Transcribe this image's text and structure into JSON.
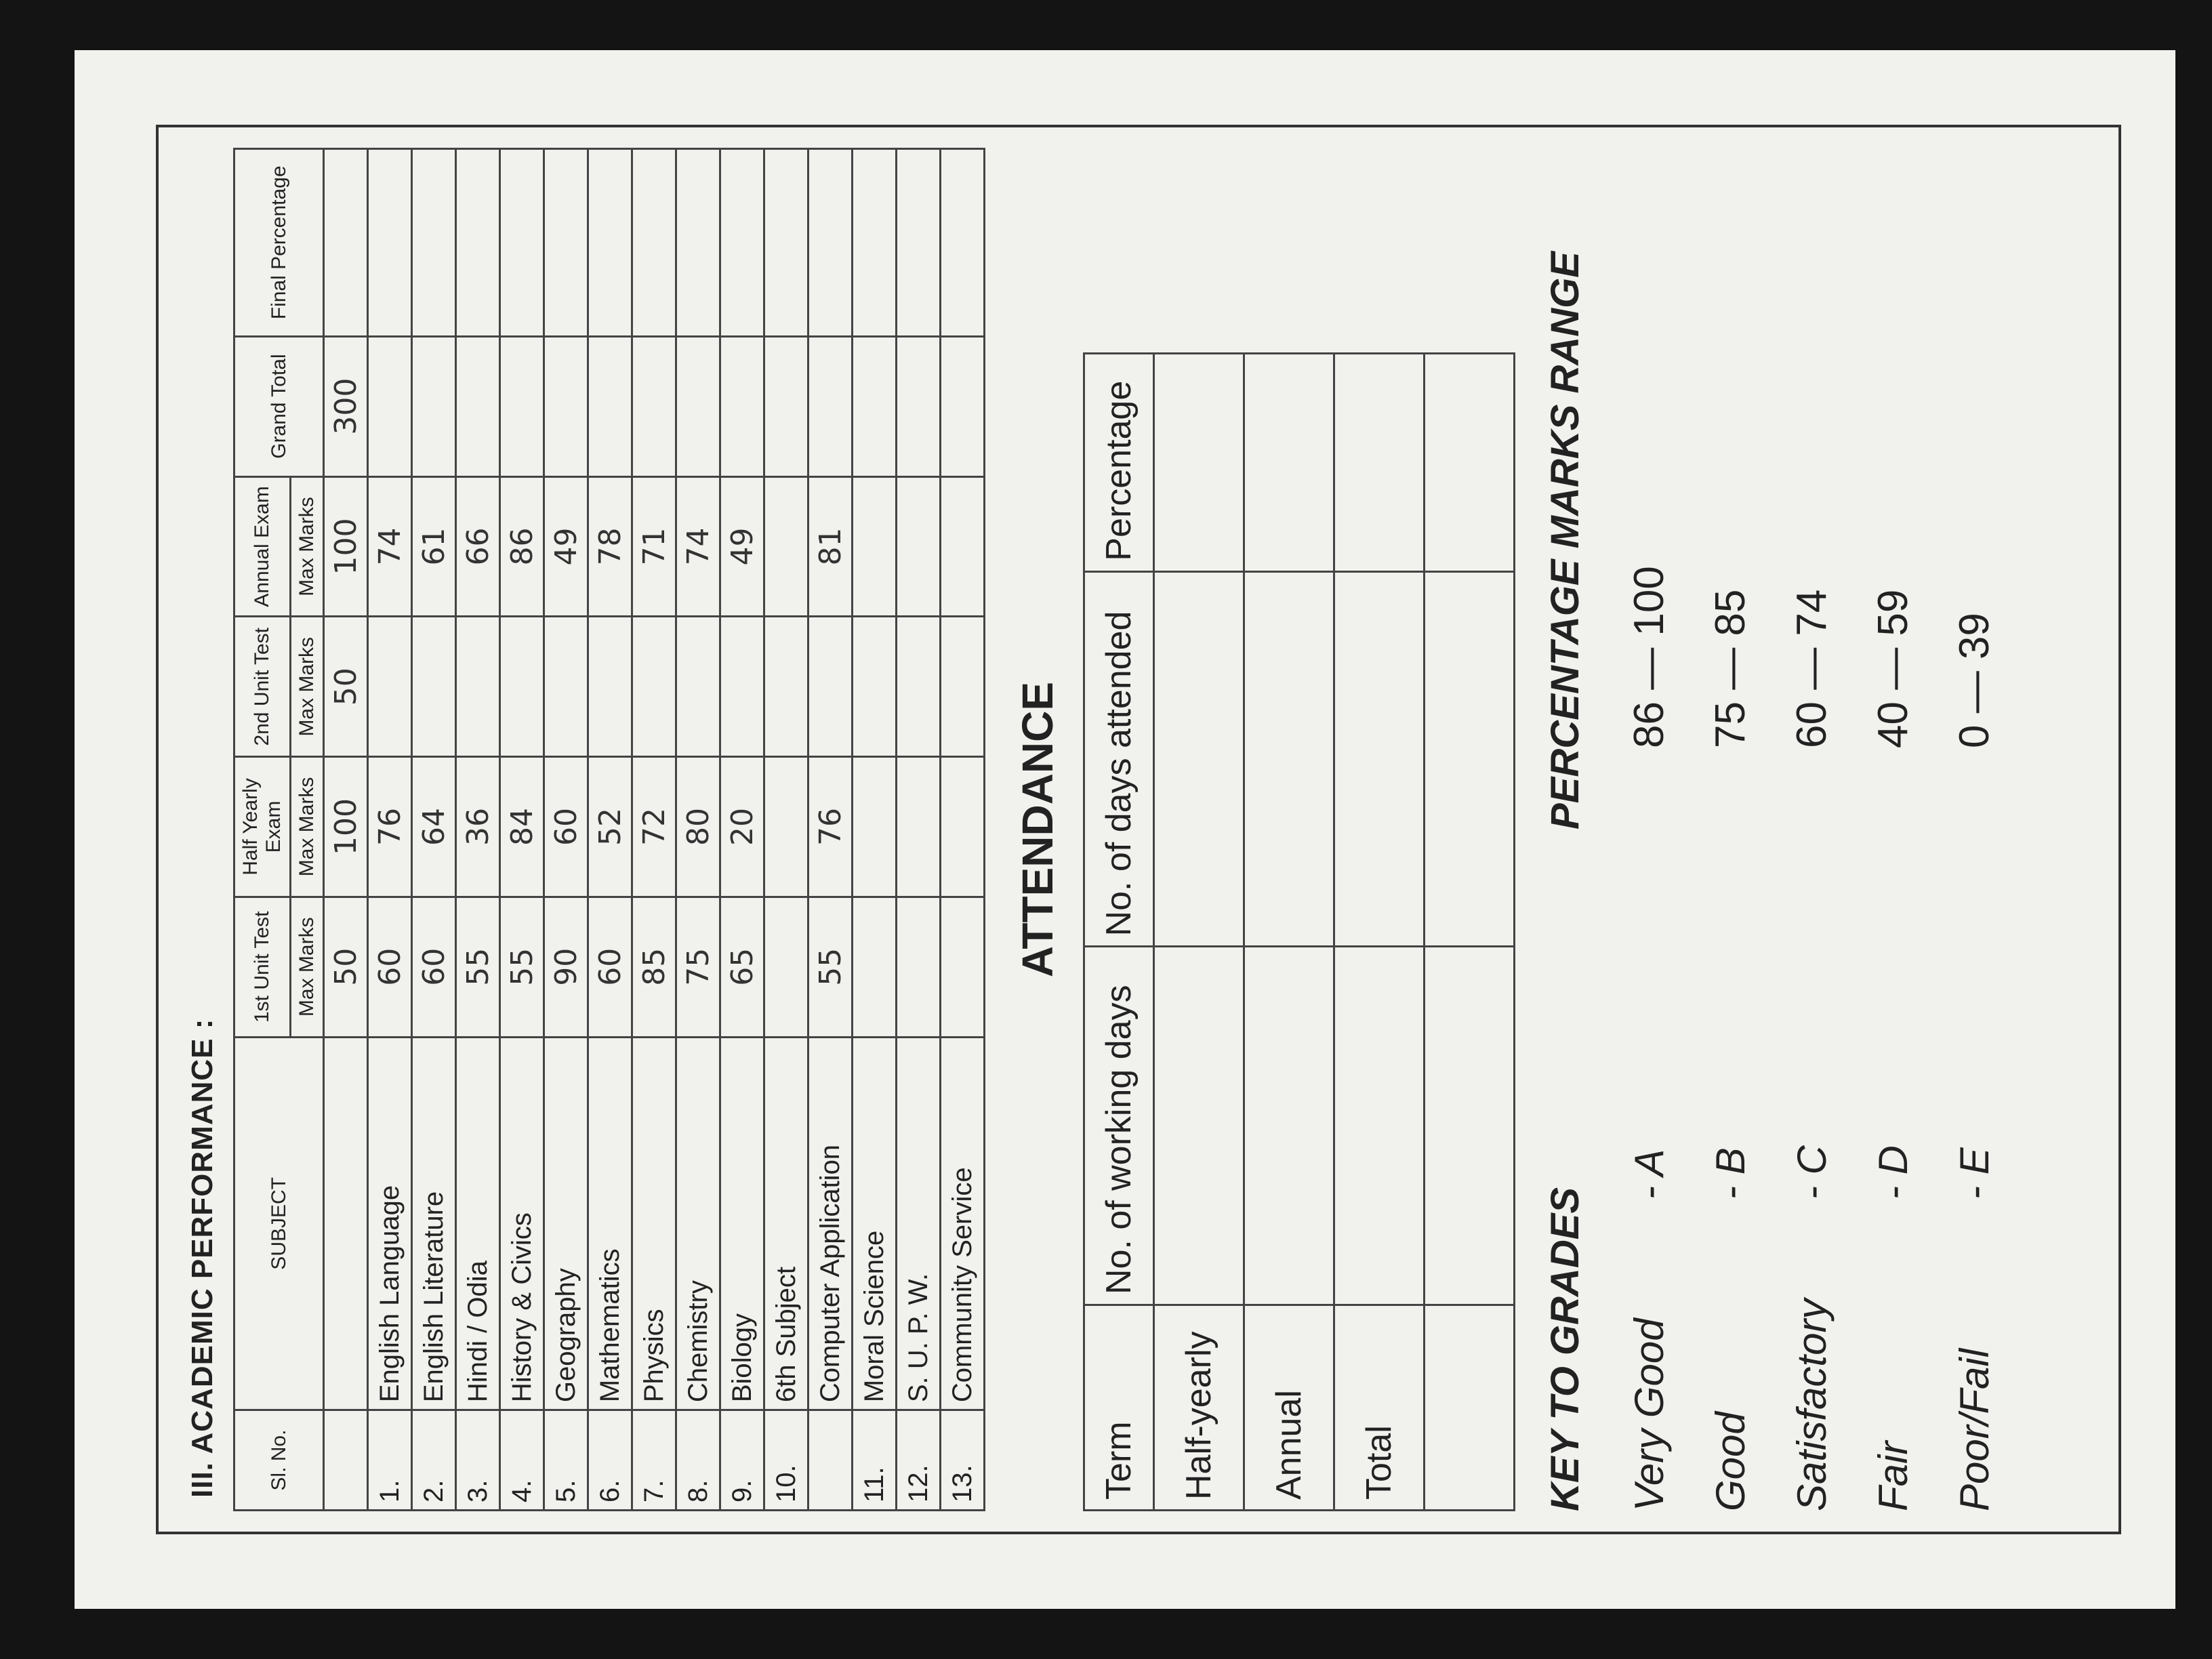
{
  "section_title": "III. ACADEMIC PERFORMANCE :",
  "table": {
    "headers": [
      "Sl. No.",
      "SUBJECT",
      "1st Unit Test",
      "Half Yearly Exam",
      "2nd Unit Test",
      "Annual Exam",
      "Grand Total",
      "Final Percentage"
    ],
    "subheader": "Max Marks",
    "max_marks": [
      50,
      100,
      50,
      100,
      300
    ],
    "rows": [
      {
        "no": "1.",
        "subject": "English Language",
        "marks": [
          60,
          76,
          null,
          74
        ]
      },
      {
        "no": "2.",
        "subject": "English Literature",
        "marks": [
          60,
          64,
          null,
          61
        ]
      },
      {
        "no": "3.",
        "subject": "Hindi / Odia",
        "marks": [
          55,
          36,
          null,
          66
        ]
      },
      {
        "no": "4.",
        "subject": "History & Civics",
        "marks": [
          55,
          84,
          null,
          86
        ]
      },
      {
        "no": "5.",
        "subject": "Geography",
        "marks": [
          90,
          60,
          null,
          49
        ]
      },
      {
        "no": "6.",
        "subject": "Mathematics",
        "marks": [
          60,
          52,
          null,
          78
        ]
      },
      {
        "no": "7.",
        "subject": "Physics",
        "marks": [
          85,
          72,
          null,
          71
        ]
      },
      {
        "no": "8.",
        "subject": "Chemistry",
        "marks": [
          75,
          80,
          null,
          74
        ]
      },
      {
        "no": "9.",
        "subject": "Biology",
        "marks": [
          65,
          20,
          null,
          49
        ]
      },
      {
        "no": "10.",
        "subject": "6th Subject",
        "detail": "Computer Application",
        "marks": [
          55,
          76,
          null,
          81
        ]
      },
      {
        "no": "11.",
        "subject": "Moral Science"
      },
      {
        "no": "12.",
        "subject": "S. U. P. W."
      },
      {
        "no": "13.",
        "subject": "Community Service"
      }
    ]
  },
  "attendance": {
    "title": "ATTENDANCE",
    "headers": [
      "Term",
      "No. of working days",
      "No. of days attended",
      "Percentage"
    ],
    "terms": [
      "Half-yearly",
      "Annual",
      "Total",
      null
    ]
  },
  "key": {
    "title": "KEY TO GRADES",
    "range_title": "PERCENTAGE MARKS RANGE",
    "grades": [
      {
        "label": "Very Good",
        "grade": "- A",
        "range": "86 — 100"
      },
      {
        "label": "Good",
        "grade": "- B",
        "range": "75 — 85"
      },
      {
        "label": "Satisfactory",
        "grade": "- C",
        "range": "60 — 74"
      },
      {
        "label": "Fair",
        "grade": "- D",
        "range": "40 — 59"
      },
      {
        "label": "Poor/Fail",
        "grade": "- E",
        "range": "0 — 39"
      }
    ]
  }
}
